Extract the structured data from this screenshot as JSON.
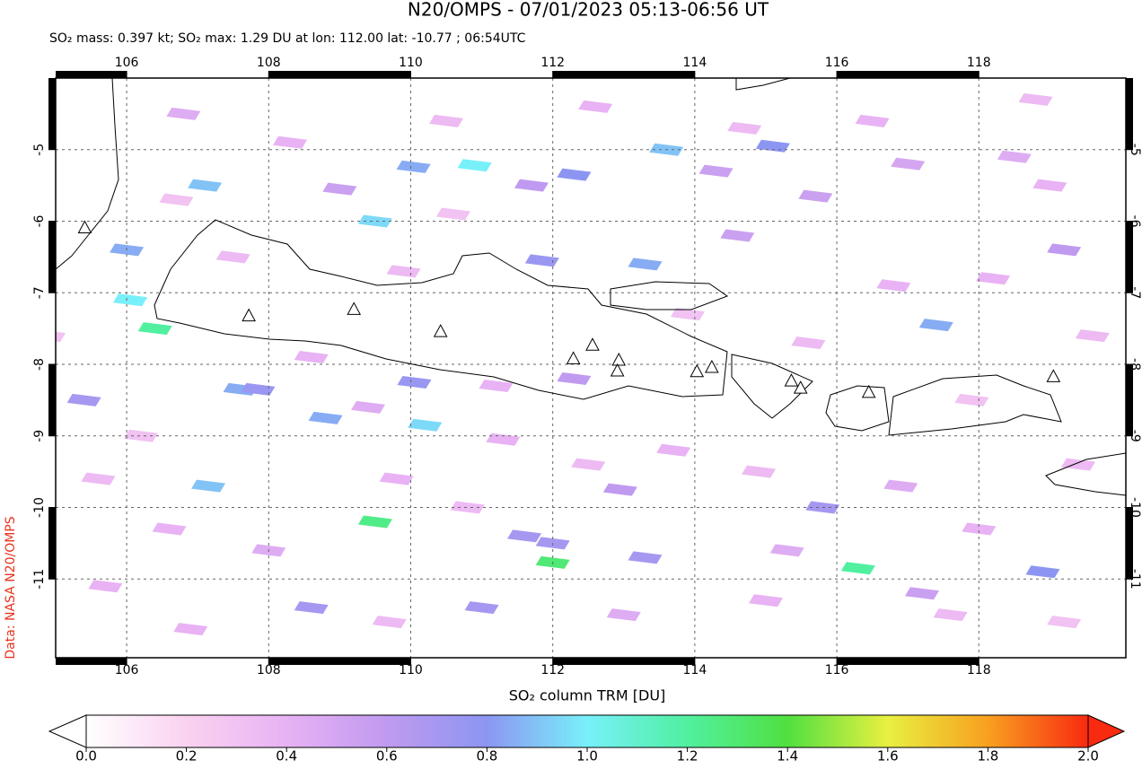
{
  "map": {
    "title": "N20/OMPS - 07/01/2023 05:13-06:56 UT",
    "subtitle": "SO₂ mass: 0.397 kt; SO₂ max: 1.29 DU at lon: 112.00 lat: -10.77 ; 06:54UTC",
    "credit": "Data: NASA N20/OMPS",
    "xlim": [
      105,
      120.07
    ],
    "ylim": [
      -4,
      -12.1
    ],
    "xticks": [
      106,
      108,
      110,
      112,
      114,
      116,
      118
    ],
    "yticks": [
      -5,
      -6,
      -7,
      -8,
      -9,
      -10,
      -11
    ],
    "grid": true,
    "colorbar": {
      "label": "SO₂ column TRM [DU]",
      "lim": [
        0,
        2
      ],
      "ticks": [
        {
          "value": 0,
          "label": "0.0"
        },
        {
          "value": 0.2,
          "label": "0.2"
        },
        {
          "value": 0.4,
          "label": "0.4"
        },
        {
          "value": 0.6,
          "label": "0.6"
        },
        {
          "value": 0.8,
          "label": "0.8"
        },
        {
          "value": 1,
          "label": "1.0"
        },
        {
          "value": 1.2,
          "label": "1.2"
        },
        {
          "value": 1.4,
          "label": "1.4"
        },
        {
          "value": 1.6,
          "label": "1.6"
        },
        {
          "value": 1.8,
          "label": "1.8"
        },
        {
          "value": 2,
          "label": "2.0"
        }
      ],
      "colors": [
        "#ffffff",
        "#fad2f0",
        "#e8b2f4",
        "#c09af0",
        "#8c96f2",
        "#78f0fa",
        "#50f0a0",
        "#50e040",
        "#e8f040",
        "#f8a020",
        "#f82a10"
      ]
    },
    "pixels": [
      [
        110.9,
        -5.22,
        1.0
      ],
      [
        110.04,
        -5.24,
        0.85
      ],
      [
        112.0,
        -10.77,
        1.29
      ],
      [
        109.5,
        -10.2,
        1.25
      ],
      [
        106.4,
        -7.5,
        1.2
      ],
      [
        116.3,
        -10.85,
        1.2
      ],
      [
        110.2,
        -8.85,
        0.95
      ],
      [
        109.5,
        -6.0,
        0.95
      ],
      [
        107.1,
        -5.5,
        0.9
      ],
      [
        113.6,
        -5.0,
        0.9
      ],
      [
        113.3,
        -6.6,
        0.85
      ],
      [
        112.3,
        -5.35,
        0.8
      ],
      [
        112.0,
        -10.5,
        0.7
      ],
      [
        111.6,
        -10.4,
        0.7
      ],
      [
        117.4,
        -7.45,
        0.85
      ],
      [
        106.0,
        -6.4,
        0.85
      ],
      [
        106.05,
        -7.1,
        1.0
      ],
      [
        107.6,
        -8.35,
        0.85
      ],
      [
        107.85,
        -8.35,
        0.75
      ],
      [
        108.8,
        -8.75,
        0.85
      ],
      [
        107.15,
        -9.7,
        0.9
      ],
      [
        110.05,
        -8.25,
        0.75
      ],
      [
        111.85,
        -6.55,
        0.75
      ],
      [
        115.8,
        -10.0,
        0.7
      ],
      [
        118.9,
        -10.9,
        0.8
      ],
      [
        112.3,
        -8.2,
        0.6
      ],
      [
        112.95,
        -9.75,
        0.6
      ],
      [
        113.3,
        -10.7,
        0.7
      ],
      [
        115.1,
        -4.95,
        0.8
      ],
      [
        111.0,
        -11.4,
        0.7
      ],
      [
        108.6,
        -11.4,
        0.7
      ],
      [
        111.3,
        -9.05,
        0.4
      ],
      [
        109.0,
        -5.55,
        0.55
      ],
      [
        111.7,
        -5.5,
        0.6
      ],
      [
        114.3,
        -5.3,
        0.55
      ],
      [
        115.7,
        -5.65,
        0.55
      ],
      [
        117.0,
        -5.2,
        0.5
      ],
      [
        118.5,
        -5.1,
        0.45
      ],
      [
        119.2,
        -6.4,
        0.6
      ],
      [
        118.2,
        -6.8,
        0.4
      ],
      [
        106.8,
        -4.5,
        0.45
      ],
      [
        108.3,
        -4.9,
        0.4
      ],
      [
        110.5,
        -4.6,
        0.35
      ],
      [
        112.6,
        -4.4,
        0.4
      ],
      [
        114.7,
        -4.7,
        0.35
      ],
      [
        116.5,
        -4.6,
        0.4
      ],
      [
        118.8,
        -4.3,
        0.35
      ],
      [
        105.4,
        -8.5,
        0.7
      ],
      [
        105.6,
        -9.6,
        0.35
      ],
      [
        106.6,
        -10.3,
        0.4
      ],
      [
        108.0,
        -10.6,
        0.45
      ],
      [
        109.8,
        -9.6,
        0.4
      ],
      [
        110.8,
        -10.0,
        0.35
      ],
      [
        113.7,
        -9.2,
        0.4
      ],
      [
        114.9,
        -9.5,
        0.35
      ],
      [
        116.9,
        -9.7,
        0.45
      ],
      [
        118.0,
        -10.3,
        0.4
      ],
      [
        119.4,
        -9.4,
        0.35
      ],
      [
        117.2,
        -11.2,
        0.55
      ],
      [
        115.0,
        -11.3,
        0.4
      ],
      [
        113.0,
        -11.5,
        0.45
      ],
      [
        109.7,
        -11.6,
        0.35
      ],
      [
        106.9,
        -11.7,
        0.4
      ],
      [
        105.7,
        -11.1,
        0.4
      ],
      [
        104.9,
        -7.6,
        0.3
      ],
      [
        108.6,
        -7.9,
        0.4
      ],
      [
        109.9,
        -6.7,
        0.35
      ],
      [
        113.9,
        -7.3,
        0.3
      ],
      [
        115.6,
        -7.7,
        0.35
      ],
      [
        117.9,
        -8.5,
        0.3
      ],
      [
        119.6,
        -7.6,
        0.35
      ],
      [
        110.6,
        -5.9,
        0.3
      ],
      [
        107.5,
        -6.5,
        0.35
      ],
      [
        106.7,
        -5.7,
        0.3
      ],
      [
        114.6,
        -6.2,
        0.55
      ],
      [
        116.8,
        -6.9,
        0.4
      ],
      [
        119.0,
        -5.5,
        0.4
      ],
      [
        112.5,
        -9.4,
        0.35
      ],
      [
        111.2,
        -8.3,
        0.4
      ],
      [
        109.4,
        -8.6,
        0.45
      ],
      [
        115.3,
        -10.6,
        0.45
      ],
      [
        117.6,
        -11.5,
        0.35
      ],
      [
        119.2,
        -11.6,
        0.3
      ],
      [
        106.2,
        -9.0,
        0.3
      ]
    ],
    "volcanoes": [
      [
        107.72,
        -7.33
      ],
      [
        109.2,
        -7.24
      ],
      [
        110.42,
        -7.55
      ],
      [
        112.29,
        -7.93
      ],
      [
        112.56,
        -7.74
      ],
      [
        112.93,
        -7.95
      ],
      [
        112.91,
        -8.1
      ],
      [
        114.03,
        -8.11
      ],
      [
        114.24,
        -8.05
      ],
      [
        115.36,
        -8.24
      ],
      [
        115.49,
        -8.34
      ],
      [
        116.45,
        -8.4
      ],
      [
        119.05,
        -8.18
      ],
      [
        105.41,
        -6.1
      ]
    ]
  }
}
